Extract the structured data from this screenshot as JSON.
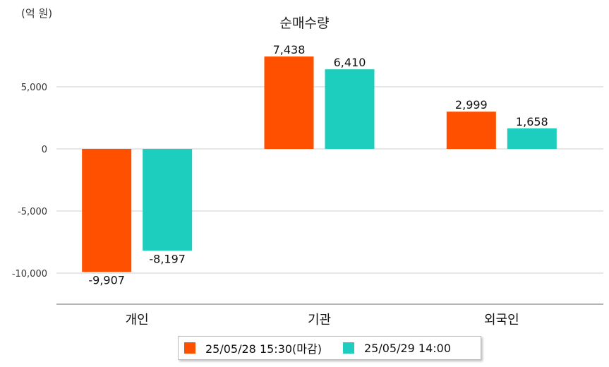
{
  "chart_data": {
    "type": "bar",
    "title": "순매수량",
    "unit_label": "(억 원)",
    "categories": [
      "개인",
      "기관",
      "외국인"
    ],
    "series": [
      {
        "name": "25/05/28 15:30(마감)",
        "color": "#ff5000",
        "values": [
          -9907,
          7438,
          2999
        ],
        "labels": [
          "-9,907",
          "7,438",
          "2,999"
        ]
      },
      {
        "name": "25/05/29 14:00",
        "color": "#1dcdbd",
        "values": [
          -8197,
          6410,
          1658
        ],
        "labels": [
          "-8,197",
          "6,410",
          "1,658"
        ]
      }
    ],
    "ylim": [
      -12500,
      10000
    ],
    "yticks": [
      5000,
      0,
      -5000,
      -10000
    ],
    "ytick_labels": [
      "5,000",
      "0",
      "-5,000",
      "-10,000"
    ],
    "grid": true,
    "legend_position": "bottom"
  }
}
